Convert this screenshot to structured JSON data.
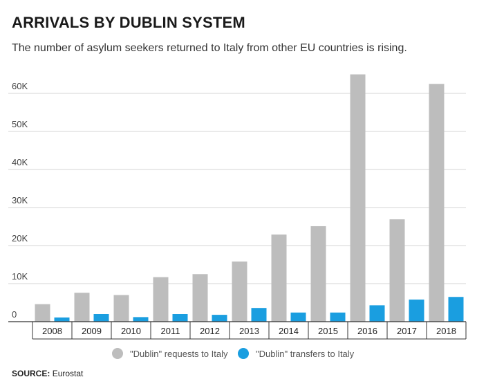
{
  "header": {
    "title": "ARRIVALS BY DUBLIN SYSTEM",
    "subtitle": "The number of asylum seekers returned to Italy from other EU countries is rising."
  },
  "source": {
    "label": "SOURCE:",
    "text": "Eurostat"
  },
  "colors": {
    "requests": "#bdbdbd",
    "transfers": "#1a9ee0",
    "grid": "#d6d6d6",
    "axis": "#333333"
  },
  "chart_data": {
    "type": "bar",
    "title": "ARRIVALS BY DUBLIN SYSTEM",
    "subtitle": "The number of asylum seekers returned to Italy from other EU countries is rising.",
    "categories": [
      "2008",
      "2009",
      "2010",
      "2011",
      "2012",
      "2013",
      "2014",
      "2015",
      "2016",
      "2017",
      "2018"
    ],
    "series": [
      {
        "name": "\"Dublin\" requests to Italy",
        "color": "#bdbdbd",
        "values": [
          4600,
          7600,
          7000,
          11700,
          12500,
          15800,
          22900,
          25100,
          65000,
          26900,
          62500
        ]
      },
      {
        "name": "\"Dublin\" transfers to Italy",
        "color": "#1a9ee0",
        "values": [
          1100,
          2000,
          1200,
          2000,
          1800,
          3600,
          2400,
          2400,
          4300,
          5800,
          6500
        ]
      }
    ],
    "y_ticks": [
      {
        "value": 0,
        "label": "0"
      },
      {
        "value": 10000,
        "label": "10K"
      },
      {
        "value": 20000,
        "label": "20K"
      },
      {
        "value": 30000,
        "label": "30K"
      },
      {
        "value": 40000,
        "label": "40K"
      },
      {
        "value": 50000,
        "label": "50K"
      },
      {
        "value": 60000,
        "label": "60K"
      }
    ],
    "ylim": [
      0,
      65000
    ],
    "xlabel": "",
    "ylabel": "",
    "grid": true,
    "legend_position": "bottom-center"
  }
}
